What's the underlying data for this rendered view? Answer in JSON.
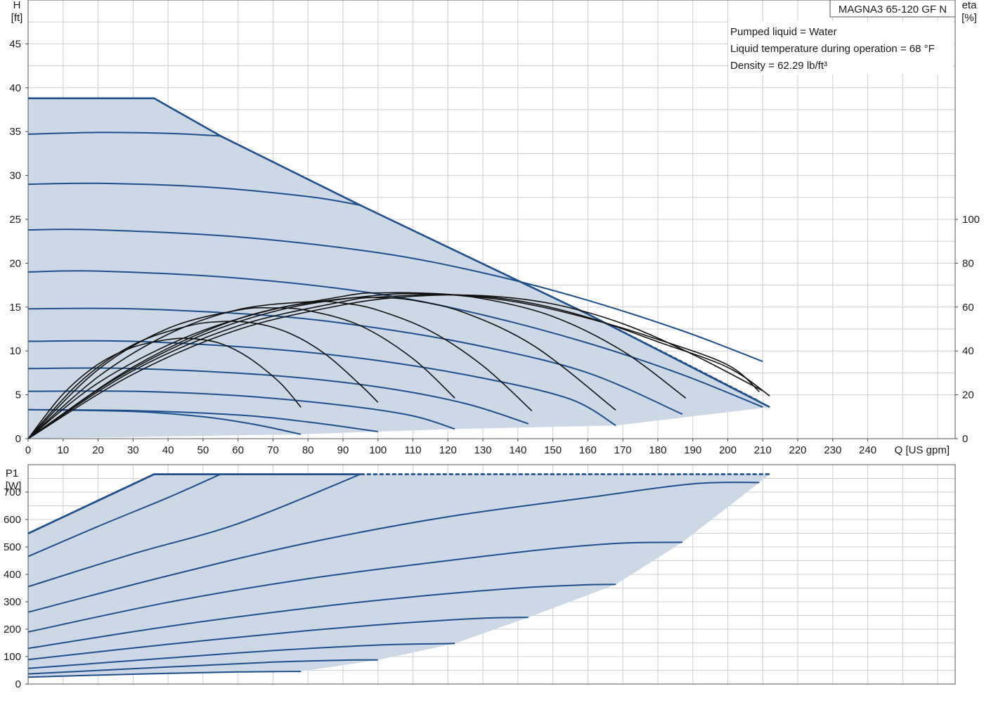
{
  "info": {
    "model": "MAGNA3 65-120 GF N",
    "lines": [
      "Pumped liquid = Water",
      "Liquid temperature during operation = 68 °F",
      "Density = 62.29 lb/ft³"
    ]
  },
  "colors": {
    "fill": "#ccd8e5",
    "curve": "#1d4f8c",
    "eta": "#111111",
    "grid": "#cfcfcf"
  },
  "chart_data": [
    {
      "type": "line",
      "panel": "head",
      "ylabel_lines": [
        "H",
        "[ft]"
      ],
      "y2label_lines": [
        "eta",
        "[%]"
      ],
      "xlabel": "Q [US gpm]",
      "xlim": [
        0,
        265
      ],
      "ylim": [
        0,
        50
      ],
      "x_ticks": [
        0,
        10,
        20,
        30,
        40,
        50,
        60,
        70,
        80,
        90,
        100,
        110,
        120,
        130,
        140,
        150,
        160,
        170,
        180,
        190,
        200,
        210,
        220,
        230,
        240
      ],
      "y_ticks": [
        0,
        5,
        10,
        15,
        20,
        25,
        30,
        35,
        40,
        45
      ],
      "y2_ticks": [
        0,
        20,
        40,
        60,
        80,
        100
      ],
      "y2lim": [
        0,
        200
      ],
      "grid": true,
      "envelope": [
        [
          0,
          38.8
        ],
        [
          36,
          38.8
        ],
        [
          55,
          34.5
        ],
        [
          95,
          26.6
        ],
        [
          160,
          14.2
        ],
        [
          212,
          3.6
        ],
        [
          168,
          1.5
        ],
        [
          122,
          1.1
        ],
        [
          100,
          0.8
        ],
        [
          78,
          0.5
        ],
        [
          0,
          0
        ]
      ],
      "max_curve": [
        [
          0,
          38.8
        ],
        [
          36,
          38.8
        ],
        [
          55,
          34.5
        ],
        [
          95,
          26.6
        ],
        [
          160,
          14.2
        ],
        [
          212,
          3.6
        ]
      ],
      "max_curve_alt": [
        [
          95,
          26.6
        ],
        [
          160,
          14.2
        ],
        [
          209,
          4.3
        ]
      ],
      "series": [
        {
          "points": [
            [
              0,
              34.7
            ],
            [
              20,
              34.9
            ],
            [
              40,
              34.8
            ],
            [
              55,
              34.5
            ]
          ]
        },
        {
          "points": [
            [
              0,
              29.0
            ],
            [
              20,
              29.1
            ],
            [
              50,
              28.7
            ],
            [
              80,
              27.6
            ],
            [
              95,
              26.6
            ]
          ]
        },
        {
          "points": [
            [
              0,
              23.8
            ],
            [
              20,
              23.8
            ],
            [
              60,
              23.0
            ],
            [
              100,
              21.2
            ],
            [
              130,
              18.9
            ],
            [
              158,
              16.0
            ],
            [
              187,
              12.3
            ],
            [
              210,
              8.8
            ]
          ]
        },
        {
          "points": [
            [
              0,
              19.0
            ],
            [
              20,
              19.1
            ],
            [
              60,
              18.3
            ],
            [
              100,
              16.5
            ],
            [
              130,
              14.1
            ],
            [
              160,
              10.9
            ],
            [
              187,
              7.3
            ],
            [
              210,
              3.6
            ]
          ]
        },
        {
          "points": [
            [
              0,
              14.8
            ],
            [
              30,
              14.8
            ],
            [
              70,
              14.0
            ],
            [
              100,
              12.6
            ],
            [
              130,
              10.5
            ],
            [
              160,
              7.5
            ],
            [
              187,
              2.8
            ]
          ]
        },
        {
          "points": [
            [
              0,
              11.1
            ],
            [
              30,
              11.1
            ],
            [
              70,
              10.2
            ],
            [
              100,
              8.9
            ],
            [
              130,
              6.9
            ],
            [
              155,
              4.5
            ],
            [
              168,
              1.5
            ]
          ]
        },
        {
          "points": [
            [
              0,
              8.0
            ],
            [
              30,
              8.0
            ],
            [
              70,
              7.2
            ],
            [
              100,
              5.9
            ],
            [
              125,
              4.0
            ],
            [
              143,
              1.7
            ]
          ]
        },
        {
          "points": [
            [
              0,
              5.4
            ],
            [
              30,
              5.4
            ],
            [
              60,
              4.9
            ],
            [
              90,
              3.8
            ],
            [
              110,
              2.6
            ],
            [
              122,
              1.1
            ]
          ]
        },
        {
          "points": [
            [
              0,
              3.3
            ],
            [
              30,
              3.2
            ],
            [
              60,
              2.7
            ],
            [
              80,
              1.9
            ],
            [
              100,
              0.8
            ]
          ]
        },
        {
          "points": [
            [
              0,
              3.3
            ],
            [
              30,
              3.1
            ],
            [
              50,
              2.5
            ],
            [
              65,
              1.6
            ],
            [
              78,
              0.5
            ]
          ]
        }
      ],
      "eta_series": [
        {
          "points": [
            [
              0,
              0
            ],
            [
              10,
              20.4
            ],
            [
              20,
              33.9
            ],
            [
              30,
              41.7
            ],
            [
              40,
              45.2
            ],
            [
              47,
              45.6
            ],
            [
              55,
              43.4
            ],
            [
              63,
              37.0
            ],
            [
              72,
              25.5
            ],
            [
              78,
              14.3
            ]
          ]
        },
        {
          "points": [
            [
              0,
              0
            ],
            [
              15,
              26.1
            ],
            [
              30,
              42.8
            ],
            [
              45,
              51.1
            ],
            [
              55,
              53.4
            ],
            [
              65,
              52.6
            ],
            [
              75,
              47.9
            ],
            [
              85,
              38.5
            ],
            [
              95,
              24.5
            ],
            [
              100,
              16.6
            ]
          ]
        },
        {
          "points": [
            [
              0,
              0
            ],
            [
              20,
              31.5
            ],
            [
              40,
              50.3
            ],
            [
              60,
              58.6
            ],
            [
              70,
              59.6
            ],
            [
              80,
              58.4
            ],
            [
              95,
              51.5
            ],
            [
              110,
              36.5
            ],
            [
              122,
              18.5
            ]
          ]
        },
        {
          "points": [
            [
              0,
              0
            ],
            [
              20,
              28.2
            ],
            [
              40,
              47.6
            ],
            [
              60,
              58.8
            ],
            [
              80,
              62.4
            ],
            [
              90,
              61.8
            ],
            [
              100,
              58.6
            ],
            [
              115,
              49.1
            ],
            [
              130,
              33.2
            ],
            [
              144,
              12.7
            ]
          ]
        },
        {
          "points": [
            [
              0,
              0
            ],
            [
              20,
              25.4
            ],
            [
              45,
              46.2
            ],
            [
              70,
              58.9
            ],
            [
              90,
              63.8
            ],
            [
              100,
              64.3
            ],
            [
              110,
              63.1
            ],
            [
              125,
              57.3
            ],
            [
              145,
              41.9
            ],
            [
              168,
              13.0
            ]
          ]
        },
        {
          "points": [
            [
              0,
              0
            ],
            [
              25,
              27.3
            ],
            [
              50,
              47.4
            ],
            [
              75,
              59.8
            ],
            [
              100,
              65.4
            ],
            [
              115,
              65.9
            ],
            [
              130,
              63.8
            ],
            [
              150,
              55.7
            ],
            [
              170,
              39.9
            ],
            [
              188,
              18.5
            ]
          ]
        },
        {
          "points": [
            [
              0,
              0
            ],
            [
              30,
              29.4
            ],
            [
              60,
              49.7
            ],
            [
              90,
              61.0
            ],
            [
              110,
              64.9
            ],
            [
              130,
              65.2
            ],
            [
              150,
              61.4
            ],
            [
              170,
              52.4
            ],
            [
              190,
              38.4
            ],
            [
              210,
              21.8
            ]
          ]
        },
        {
          "points": [
            [
              0,
              0
            ],
            [
              30,
              31.0
            ],
            [
              60,
              51.4
            ],
            [
              90,
              62.5
            ],
            [
              100,
              64.5
            ],
            [
              120,
              65.7
            ],
            [
              140,
              62.9
            ],
            [
              160,
              55.3
            ],
            [
              180,
              44.2
            ],
            [
              200,
              32.5
            ],
            [
              212,
              19.5
            ]
          ]
        },
        {
          "points": [
            [
              0,
              0
            ],
            [
              30,
              32.7
            ],
            [
              60,
              54.6
            ],
            [
              90,
              64.9
            ],
            [
              102,
              66.5
            ],
            [
              120,
              65.8
            ],
            [
              140,
              62.2
            ],
            [
              160,
              54.9
            ],
            [
              180,
              45.3
            ],
            [
              200,
              33.6
            ],
            [
              209,
              21.4
            ]
          ]
        }
      ]
    },
    {
      "type": "line",
      "panel": "power",
      "ylabel_lines": [
        "P1",
        "[W]"
      ],
      "xlim": [
        0,
        265
      ],
      "ylim": [
        0,
        800
      ],
      "x_ticks": [
        0,
        10,
        20,
        30,
        40,
        50,
        60,
        70,
        80,
        90,
        100,
        110,
        120,
        130,
        140,
        150,
        160,
        170,
        180,
        190,
        200,
        210,
        220,
        230,
        240
      ],
      "y_ticks": [
        0,
        100,
        200,
        300,
        400,
        500,
        600,
        700
      ],
      "grid": true,
      "envelope": [
        [
          0,
          549
        ],
        [
          36,
          765
        ],
        [
          212,
          765
        ],
        [
          209,
          735
        ],
        [
          187,
          517
        ],
        [
          168,
          363
        ],
        [
          143,
          243
        ],
        [
          122,
          148
        ],
        [
          100,
          88
        ],
        [
          78,
          46
        ],
        [
          0,
          25
        ]
      ],
      "max_curve": [
        [
          0,
          549
        ],
        [
          36,
          765
        ],
        [
          95,
          765
        ]
      ],
      "max_curve_dashed": [
        [
          95,
          765
        ],
        [
          212,
          765
        ]
      ],
      "series": [
        {
          "points": [
            [
              0,
              465
            ],
            [
              20,
              575
            ],
            [
              40,
              680
            ],
            [
              55,
              765
            ]
          ]
        },
        {
          "points": [
            [
              0,
              355
            ],
            [
              30,
              475
            ],
            [
              60,
              585
            ],
            [
              95,
              765
            ]
          ]
        },
        {
          "points": [
            [
              0,
              262
            ],
            [
              40,
              395
            ],
            [
              80,
              515
            ],
            [
              120,
              610
            ],
            [
              160,
              680
            ],
            [
              190,
              730
            ],
            [
              209,
              735
            ]
          ]
        },
        {
          "points": [
            [
              0,
              190
            ],
            [
              40,
              298
            ],
            [
              80,
              384
            ],
            [
              120,
              450
            ],
            [
              150,
              494
            ],
            [
              170,
              514
            ],
            [
              187,
              517
            ]
          ]
        },
        {
          "points": [
            [
              0,
              130
            ],
            [
              40,
              210
            ],
            [
              80,
              277
            ],
            [
              110,
              318
            ],
            [
              140,
              350
            ],
            [
              160,
              362
            ],
            [
              168,
              363
            ]
          ]
        },
        {
          "points": [
            [
              0,
              89
            ],
            [
              40,
              145
            ],
            [
              80,
              195
            ],
            [
              110,
              225
            ],
            [
              130,
              240
            ],
            [
              143,
              243
            ]
          ]
        },
        {
          "points": [
            [
              0,
              57
            ],
            [
              40,
              95
            ],
            [
              70,
              122
            ],
            [
              100,
              142
            ],
            [
              122,
              148
            ]
          ]
        },
        {
          "points": [
            [
              0,
              37
            ],
            [
              40,
              62
            ],
            [
              70,
              80
            ],
            [
              90,
              87
            ],
            [
              100,
              88
            ]
          ]
        },
        {
          "points": [
            [
              0,
              25
            ],
            [
              30,
              36
            ],
            [
              60,
              44
            ],
            [
              78,
              46
            ]
          ]
        }
      ]
    }
  ]
}
